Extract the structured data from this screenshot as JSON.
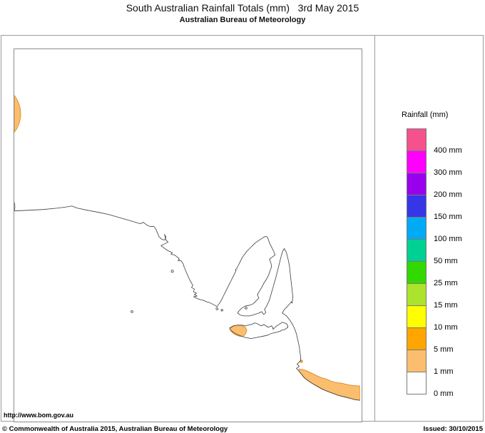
{
  "header": {
    "title": "South Australian Rainfall Totals (mm)   3rd May 2015",
    "subtitle": "Australian Bureau of Meteorology"
  },
  "legend": {
    "title": "Rainfall (mm)",
    "items": [
      {
        "label": "400 mm",
        "color": "#F5518C"
      },
      {
        "label": "300 mm",
        "color": "#FF00FF"
      },
      {
        "label": "200 mm",
        "color": "#9900EE"
      },
      {
        "label": "150 mm",
        "color": "#3636E8"
      },
      {
        "label": "100 mm",
        "color": "#00AAF5"
      },
      {
        "label": "50 mm",
        "color": "#00D093"
      },
      {
        "label": "25 mm",
        "color": "#33D800"
      },
      {
        "label": "15 mm",
        "color": "#ACE32D"
      },
      {
        "label": "10 mm",
        "color": "#FFFF00"
      },
      {
        "label": "5 mm",
        "color": "#FFA500"
      },
      {
        "label": "1 mm",
        "color": "#FBBE6E"
      },
      {
        "label": "0 mm",
        "color": "#FFFFFF"
      }
    ]
  },
  "map": {
    "coast_stroke": "#3a3a3a",
    "rain_region_fill": "#FBBE6E",
    "rain_region_stroke": "#D89433",
    "rain_dot_fill": "#F2A235"
  },
  "footer": {
    "url": "http://www.bom.gov.au",
    "copyright": "© Commonwealth of Australia 2015, Australian Bureau of Meteorology",
    "issued": "Issued: 30/10/2015"
  }
}
